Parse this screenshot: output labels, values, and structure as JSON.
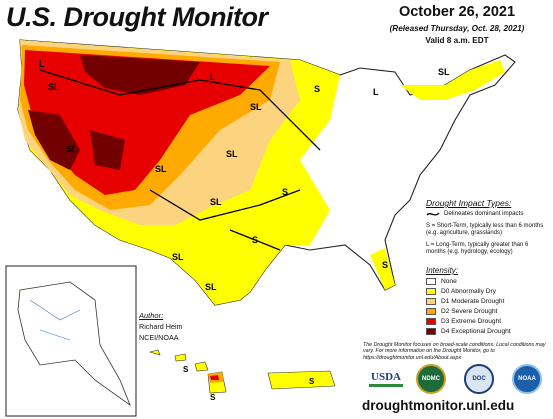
{
  "header": {
    "title": "U.S. Drought Monitor",
    "date": "October 26, 2021",
    "released": "(Released Thursday, Oct. 28, 2021)",
    "valid": "Valid 8 a.m. EDT"
  },
  "impact_types": {
    "title": "Drought Impact Types:",
    "delineates": "Delineates dominant impacts",
    "short_term": "S = Short-Term, typically less than 6 months (e.g. agriculture, grasslands)",
    "long_term": "L = Long-Term, typically greater than 6 months (e.g. hydrology, ecology)"
  },
  "intensity": {
    "title": "Intensity:",
    "levels": [
      {
        "label": "None",
        "color": "#ffffff"
      },
      {
        "label": "D0 Abnormally Dry",
        "color": "#ffff00"
      },
      {
        "label": "D1 Moderate Drought",
        "color": "#fcd37f"
      },
      {
        "label": "D2 Severe Drought",
        "color": "#ffaa00"
      },
      {
        "label": "D3 Extreme Drought",
        "color": "#e60000"
      },
      {
        "label": "D4 Exceptional Drought",
        "color": "#730000"
      }
    ]
  },
  "note": "The Drought Monitor focuses on broad-scale conditions. Local conditions may vary. For more information on the Drought Monitor, go to https://droughtmonitor.unl.edu/About.aspx",
  "author": {
    "title": "Author:",
    "name": "Richard Heim",
    "org": "NCEI/NOAA"
  },
  "map_labels": {
    "L": "L",
    "SL": "SL",
    "S": "S"
  },
  "logos": {
    "usda": "USDA",
    "ndmc": "NDMC",
    "doc": "DOC",
    "noaa": "NOAA"
  },
  "url": "droughtmonitor.unl.edu"
}
